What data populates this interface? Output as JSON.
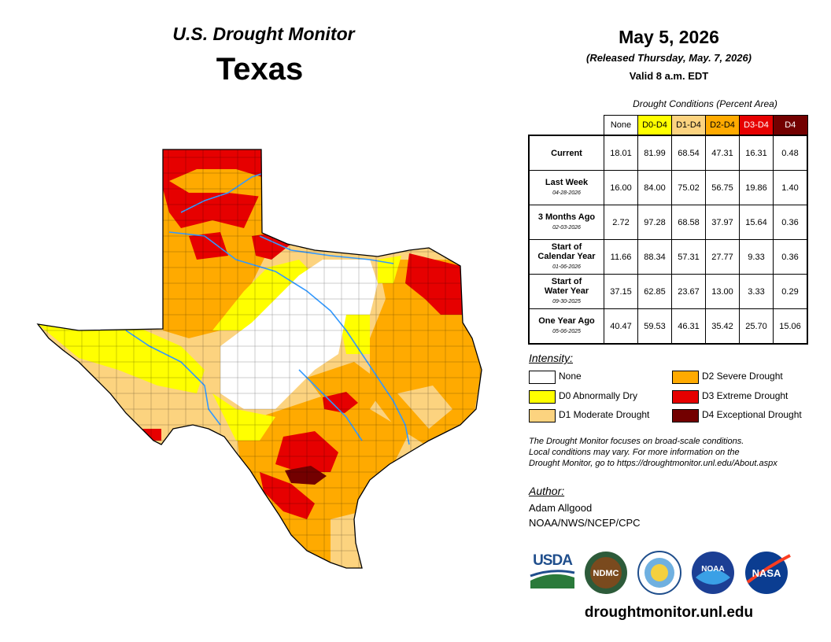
{
  "header": {
    "map_title": "U.S. Drought Monitor",
    "region": "Texas",
    "date": "May 5, 2026",
    "released": "(Released Thursday, May. 7, 2026)",
    "valid": "Valid 8 a.m. EDT"
  },
  "conditions": {
    "caption": "Drought Conditions (Percent Area)",
    "columns": [
      "None",
      "D0-D4",
      "D1-D4",
      "D2-D4",
      "D3-D4",
      "D4"
    ],
    "column_colors": [
      "#ffffff",
      "#ffff00",
      "#fcd37f",
      "#ffaa00",
      "#e60000",
      "#730000"
    ],
    "column_text_colors": [
      "#000000",
      "#000000",
      "#000000",
      "#000000",
      "#ffffff",
      "#ffffff"
    ],
    "rows": [
      {
        "label": "Current",
        "label2": "",
        "date": "",
        "values": [
          "18.01",
          "81.99",
          "68.54",
          "47.31",
          "16.31",
          "0.48"
        ]
      },
      {
        "label": "Last Week",
        "label2": "",
        "date": "04-28-2026",
        "values": [
          "16.00",
          "84.00",
          "75.02",
          "56.75",
          "19.86",
          "1.40"
        ]
      },
      {
        "label": "3 Months Ago",
        "label2": "",
        "date": "02-03-2026",
        "values": [
          "2.72",
          "97.28",
          "68.58",
          "37.97",
          "15.64",
          "0.36"
        ]
      },
      {
        "label": "Start of",
        "label2": "Calendar Year",
        "date": "01-06-2026",
        "values": [
          "11.66",
          "88.34",
          "57.31",
          "27.77",
          "9.33",
          "0.36"
        ]
      },
      {
        "label": "Start of",
        "label2": "Water Year",
        "date": "09-30-2025",
        "values": [
          "37.15",
          "62.85",
          "23.67",
          "13.00",
          "3.33",
          "0.29"
        ]
      },
      {
        "label": "One Year Ago",
        "label2": "",
        "date": "05-06-2025",
        "values": [
          "40.47",
          "59.53",
          "46.31",
          "35.42",
          "25.70",
          "15.06"
        ]
      }
    ]
  },
  "legend": {
    "heading": "Intensity:",
    "items": [
      {
        "label": "None",
        "color": "#ffffff"
      },
      {
        "label": "D0 Abnormally Dry",
        "color": "#ffff00"
      },
      {
        "label": "D1 Moderate Drought",
        "color": "#fcd37f"
      },
      {
        "label": "D2 Severe Drought",
        "color": "#ffaa00"
      },
      {
        "label": "D3 Extreme Drought",
        "color": "#e60000"
      },
      {
        "label": "D4 Exceptional Drought",
        "color": "#730000"
      }
    ]
  },
  "note": {
    "line1": "The Drought Monitor focuses on broad-scale conditions.",
    "line2": "Local conditions may vary. For more information on the",
    "line3": "Drought Monitor, go to https://droughtmonitor.unl.edu/About.aspx"
  },
  "author": {
    "heading": "Author:",
    "name": "Adam Allgood",
    "org": "NOAA/NWS/NCEP/CPC"
  },
  "logos": {
    "usda": "USDA",
    "ndmc": "NDMC",
    "noaa": "NOAA",
    "nasa": "NASA"
  },
  "website": "droughtmonitor.unl.edu"
}
